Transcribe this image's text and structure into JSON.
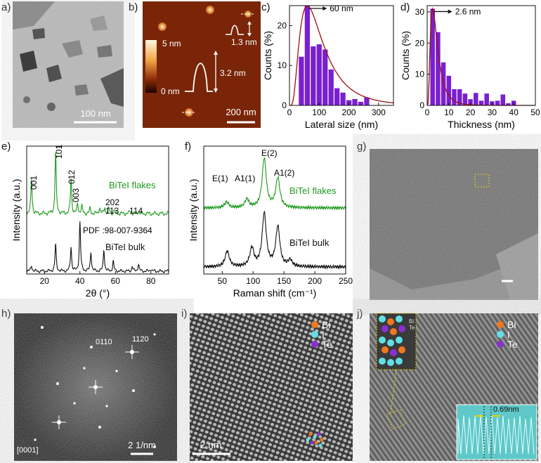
{
  "panel_labels": [
    "a)",
    "b)",
    "c)",
    "d)",
    "e)",
    "f)",
    "g)",
    "h)",
    "i)",
    "j)"
  ],
  "panel_a": {
    "scale_bar": "100 nm"
  },
  "panel_b": {
    "colorbar_top": "5 nm",
    "colorbar_bottom": "0 nm",
    "profile_large": "3.2 nm",
    "profile_small": "1.3 nm",
    "scale_bar": "200 nm"
  },
  "panel_i": {
    "scale_bar": "2 nm",
    "legend": [
      "Bi",
      "I",
      "Te"
    ]
  },
  "panel_j": {
    "legend": [
      "Bi",
      "I",
      "Te"
    ],
    "inset_label": "0.69nm",
    "inset_mini": [
      "Bi",
      "Te"
    ]
  },
  "panel_h": {
    "scale_bar": "2 1/nm",
    "zone_axis": "[0001]",
    "spot_1": "0110",
    "spot_2": "1120"
  },
  "panel_g": {
    "scale_bar": ""
  },
  "chart_data": [
    {
      "id": "c",
      "type": "bar",
      "xlabel": "Lateral size (nm)",
      "ylabel": "Counts (%)",
      "xlim": [
        0,
        350
      ],
      "ylim": [
        0,
        25
      ],
      "xticks": [
        0,
        100,
        200,
        300
      ],
      "yticks": [
        0,
        10,
        20
      ],
      "annotation": "60 nm",
      "bins": [
        40,
        60,
        80,
        100,
        120,
        140,
        160,
        180,
        200,
        220,
        240,
        260
      ],
      "values": [
        12.2,
        25,
        14.8,
        15.3,
        14,
        9,
        4.3,
        3.2,
        1.3,
        1.6,
        0.9,
        2.0
      ],
      "fit": true
    },
    {
      "id": "d",
      "type": "bar",
      "xlabel": "Thickness (nm)",
      "ylabel": "Counts (%)",
      "xlim": [
        0,
        50
      ],
      "ylim": [
        0,
        32
      ],
      "xticks": [
        0,
        10,
        20,
        30,
        40,
        50
      ],
      "yticks": [
        0,
        10,
        20,
        30
      ],
      "annotation": "2.6 nm",
      "bins": [
        2.5,
        5,
        7.5,
        10,
        12.5,
        15,
        17.5,
        20,
        22.5,
        25,
        27.5,
        30,
        32.5,
        35,
        37.5,
        40
      ],
      "values": [
        31,
        23.5,
        13.8,
        9.5,
        5.2,
        5.2,
        3.8,
        2.0,
        4.0,
        1.5,
        3.8,
        1.3,
        1.5,
        3.5,
        0.7,
        1.5
      ],
      "fit": true
    },
    {
      "id": "e",
      "type": "line",
      "xlabel": "2θ (°)",
      "ylabel": "Intensity (a.u.)",
      "xlim": [
        10,
        90
      ],
      "xticks": [
        20,
        40,
        60,
        80
      ],
      "series": [
        {
          "name": "BiTeI flakes",
          "color": "#1f9a1f",
          "peaks": [
            [
              12.7,
              0.55
            ],
            [
              26.3,
              1.0
            ],
            [
              35.0,
              0.55
            ],
            [
              38.7,
              0.15
            ],
            [
              41.0,
              0.12
            ],
            [
              45.7,
              0.08
            ],
            [
              51.1,
              0.1
            ],
            [
              54.0,
              0.1
            ],
            [
              56.3,
              0.08
            ],
            [
              59.4,
              0.06
            ],
            [
              68.4,
              0.05
            ],
            [
              73.0,
              0.04
            ]
          ]
        },
        {
          "name": "BiTeI bulk",
          "color": "#111111",
          "peaks": [
            [
              12.7,
              0.12
            ],
            [
              26.3,
              0.55
            ],
            [
              35.0,
              0.5
            ],
            [
              40.0,
              1.0
            ],
            [
              46.2,
              0.4
            ],
            [
              53.5,
              0.45
            ],
            [
              58.8,
              0.2
            ],
            [
              69.5,
              0.1
            ],
            [
              73.0,
              0.15
            ],
            [
              80.0,
              0.05
            ]
          ]
        }
      ],
      "peak_labels": [
        "001",
        "101",
        "012",
        "003",
        "202",
        "113",
        "114"
      ],
      "pdf_label": "PDF :98-007-9364"
    },
    {
      "id": "f",
      "type": "line",
      "xlabel": "Raman shift (cm⁻¹)",
      "ylabel": "Intensity (a.u.)",
      "xlim": [
        20,
        250
      ],
      "xticks": [
        50,
        100,
        150,
        200,
        250
      ],
      "series": [
        {
          "name": "BiTeI flakes",
          "color": "#1f9a1f",
          "peaks": [
            [
              57,
              0.12
            ],
            [
              90,
              0.17
            ],
            [
              118,
              1.0
            ],
            [
              140,
              0.6
            ]
          ]
        },
        {
          "name": "BiTeI bulk",
          "color": "#111111",
          "peaks": [
            [
              58,
              0.3
            ],
            [
              98,
              0.35
            ],
            [
              118,
              1.0
            ],
            [
              140,
              0.75
            ],
            [
              160,
              0.12
            ]
          ]
        }
      ],
      "peak_labels": [
        "E(1)",
        "A1(1)",
        "E(2)",
        "A1(2)"
      ]
    }
  ]
}
